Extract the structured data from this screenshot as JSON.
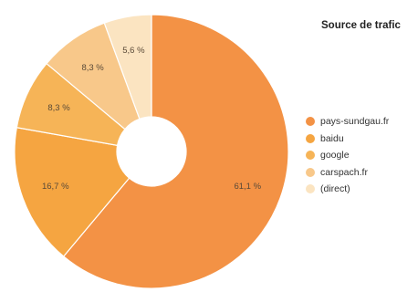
{
  "legend_title": "Source de trafic",
  "chart_data": {
    "type": "pie",
    "title": "Source de trafic",
    "legend_position": "right",
    "donut": true,
    "slices": [
      {
        "label": "pays-sundgau.fr",
        "value": 61.1,
        "value_label": "61,1 %",
        "color": "#f39245"
      },
      {
        "label": "baidu",
        "value": 16.7,
        "value_label": "16,7 %",
        "color": "#f5a541"
      },
      {
        "label": "google",
        "value": 8.3,
        "value_label": "8,3 %",
        "color": "#f6b457"
      },
      {
        "label": "carspach.fr",
        "value": 8.3,
        "value_label": "8,3 %",
        "color": "#f8c88a"
      },
      {
        "label": "(direct)",
        "value": 5.6,
        "value_label": "5,6 %",
        "color": "#fbe4c1"
      }
    ]
  }
}
